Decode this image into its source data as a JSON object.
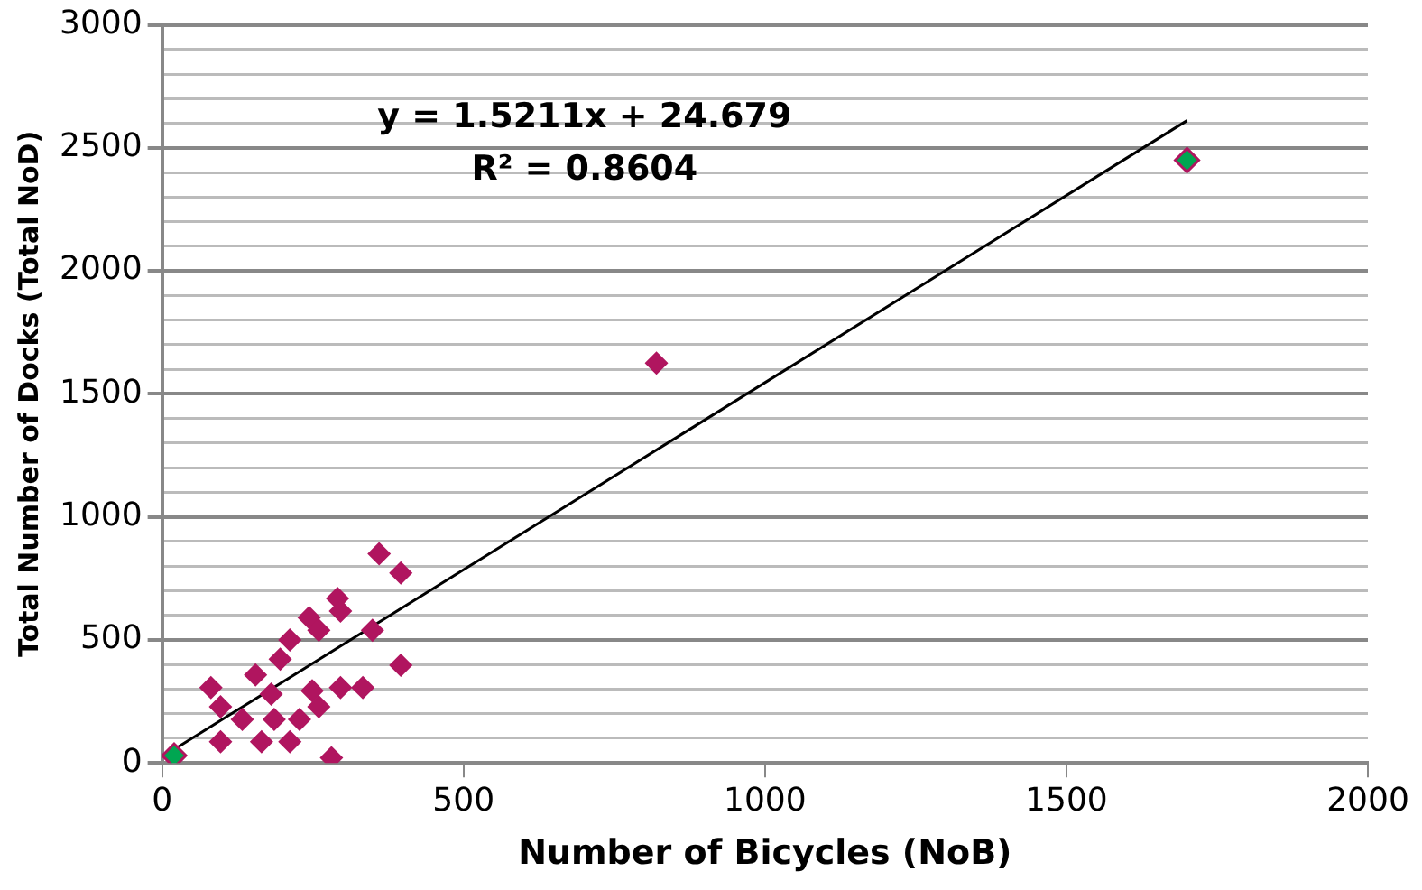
{
  "chart_data": {
    "type": "scatter",
    "xlabel": "Number of Bicycles (NoB)",
    "ylabel": "Total Number of Docks (Total NoD)",
    "annotations": [
      "y = 1.5211x + 24.679",
      "R² = 0.8604"
    ],
    "xlim": [
      0,
      2000
    ],
    "xticks": [
      0,
      500,
      1000,
      1500,
      2000
    ],
    "ylim": [
      0,
      3000
    ],
    "yticks": [
      0,
      {
        "value": 100,
        "label": null
      },
      {
        "value": 200,
        "label": null
      },
      {
        "value": 300,
        "label": null
      },
      {
        "value": 400,
        "label": null
      },
      500,
      {
        "value": 600,
        "label": null
      },
      {
        "value": 700,
        "label": null
      },
      {
        "value": 800,
        "label": null
      },
      {
        "value": 900,
        "label": null
      },
      1000,
      {
        "value": 1100,
        "label": null
      },
      {
        "value": 1200,
        "label": null
      },
      {
        "value": 1300,
        "label": null
      },
      {
        "value": 1400,
        "label": null
      },
      1500,
      {
        "value": 1600,
        "label": null
      },
      {
        "value": 1700,
        "label": null
      },
      {
        "value": 1800,
        "label": null
      },
      {
        "value": 1900,
        "label": null
      },
      2000,
      {
        "value": 2100,
        "label": null
      },
      {
        "value": 2200,
        "label": null
      },
      {
        "value": 2300,
        "label": null
      },
      {
        "value": 2400,
        "label": null
      },
      2500,
      {
        "value": 2600,
        "label": null
      },
      {
        "value": 2700,
        "label": null
      },
      {
        "value": 2800,
        "label": null
      },
      {
        "value": 2900,
        "label": null
      },
      3000
    ],
    "grid": "y",
    "legend": false,
    "marker": "diamond",
    "series": [
      {
        "color": "#b0155f",
        "x": [
          360,
          396,
          291,
          244,
          296,
          349,
          260,
          212,
          196,
          155,
          396,
          81,
          296,
          333,
          249,
          181,
          97,
          260,
          133,
          186,
          228,
          97,
          165,
          212,
          281,
          820
        ],
        "values": [
          850,
          772,
          669,
          591,
          617,
          539,
          539,
          500,
          422,
          358,
          397,
          306,
          306,
          306,
          293,
          280,
          228,
          228,
          177,
          177,
          177,
          86,
          86,
          86,
          21,
          1625
        ]
      },
      {
        "color": "#00a651",
        "x": [
          20,
          1700
        ],
        "values": [
          30,
          2450
        ]
      },
      {
        "type": "line",
        "marker": "none",
        "color": "#000000",
        "x": [
          20,
          1700
        ],
        "values": [
          55,
          2611
        ]
      }
    ]
  }
}
